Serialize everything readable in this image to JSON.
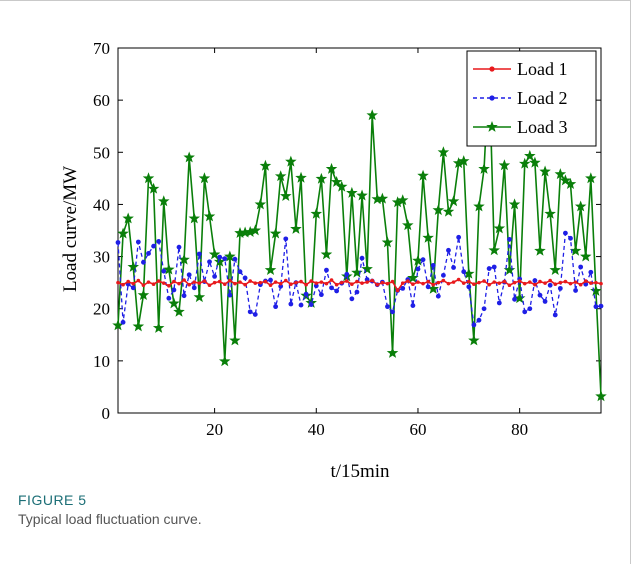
{
  "caption": {
    "label": "FIGURE 5",
    "text": "Typical load fluctuation curve."
  },
  "chart_data": {
    "type": "line",
    "xlabel": "t/15min",
    "ylabel": "Load curve/MW",
    "xlim": [
      1,
      96
    ],
    "ylim": [
      0,
      70
    ],
    "xticks": [
      20,
      40,
      60,
      80
    ],
    "yticks": [
      0,
      10,
      20,
      30,
      40,
      50,
      60,
      70
    ],
    "grid": false,
    "legend_position": "top-right",
    "x": [
      1,
      2,
      3,
      4,
      5,
      6,
      7,
      8,
      9,
      10,
      11,
      12,
      13,
      14,
      15,
      16,
      17,
      18,
      19,
      20,
      21,
      22,
      23,
      24,
      25,
      26,
      27,
      28,
      29,
      30,
      31,
      32,
      33,
      34,
      35,
      36,
      37,
      38,
      39,
      40,
      41,
      42,
      43,
      44,
      45,
      46,
      47,
      48,
      49,
      50,
      51,
      52,
      53,
      54,
      55,
      56,
      57,
      58,
      59,
      60,
      61,
      62,
      63,
      64,
      65,
      66,
      67,
      68,
      69,
      70,
      71,
      72,
      73,
      74,
      75,
      76,
      77,
      78,
      79,
      80,
      81,
      82,
      83,
      84,
      85,
      86,
      87,
      88,
      89,
      90,
      91,
      92,
      93,
      94,
      95,
      96
    ],
    "series": [
      {
        "name": "Load 1",
        "color": "#e8191c",
        "marker": "dot",
        "line_style": "solid",
        "values": [
          25.0,
          24.6,
          25.2,
          24.8,
          25.4,
          24.5,
          25.1,
          24.7,
          25.3,
          24.9,
          24.4,
          25.2,
          24.8,
          25.5,
          24.6,
          25.1,
          24.9,
          25.3,
          24.5,
          25.0,
          25.2,
          24.7,
          25.4,
          24.8,
          25.1,
          24.6,
          25.3,
          24.9,
          25.0,
          25.2,
          24.5,
          25.1,
          24.8,
          25.4,
          24.7,
          25.0,
          25.2,
          24.6,
          25.3,
          24.9,
          25.1,
          24.8,
          25.5,
          24.6,
          25.0,
          25.3,
          24.7,
          25.2,
          24.9,
          25.1,
          25.4,
          24.6,
          25.0,
          24.8,
          25.2,
          23.5,
          24.9,
          25.3,
          24.7,
          25.1,
          24.8,
          25.2,
          24.6,
          25.0,
          25.4,
          24.8,
          25.1,
          25.6,
          24.9,
          25.2,
          24.7,
          25.0,
          25.3,
          24.6,
          25.1,
          24.9,
          25.2,
          24.5,
          25.0,
          25.3,
          24.8,
          25.1,
          24.6,
          25.2,
          24.9,
          25.4,
          24.7,
          25.0,
          25.2,
          24.8,
          25.1,
          24.6,
          25.3,
          24.9,
          25.0,
          24.8
        ]
      },
      {
        "name": "Load 2",
        "color": "#1f1fe6",
        "marker": "dot",
        "line_style": "dashed",
        "values": [
          32.7,
          17.4,
          24.7,
          24.0,
          32.8,
          28.9,
          30.6,
          32.0,
          32.9,
          27.2,
          22.0,
          23.6,
          31.8,
          22.5,
          26.5,
          24.0,
          30.5,
          25.2,
          29.0,
          26.2,
          29.9,
          29.6,
          22.6,
          29.5,
          27.1,
          25.9,
          19.4,
          18.9,
          24.6,
          25.3,
          25.5,
          20.4,
          24.3,
          33.4,
          20.9,
          25.0,
          20.7,
          22.8,
          20.8,
          24.4,
          22.7,
          27.4,
          24.0,
          23.4,
          24.9,
          26.6,
          21.9,
          23.2,
          29.7,
          25.6,
          25.3,
          24.6,
          25.1,
          20.4,
          19.4,
          23.5,
          23.9,
          25.6,
          20.6,
          27.6,
          29.4,
          24.2,
          28.3,
          22.4,
          26.4,
          31.2,
          27.9,
          33.7,
          27.1,
          24.2,
          16.9,
          17.8,
          20.0,
          27.7,
          28.0,
          21.1,
          25.1,
          33.3,
          21.8,
          25.7,
          19.4,
          20.0,
          25.4,
          22.6,
          21.4,
          24.5,
          18.8,
          23.9,
          34.5,
          33.5,
          23.5,
          28.0,
          24.7,
          27.0,
          20.4,
          20.5
        ]
      },
      {
        "name": "Load 3",
        "color": "#0a7f0a",
        "marker": "star",
        "line_style": "solid",
        "values": [
          16.8,
          34.4,
          37.3,
          28.0,
          16.6,
          22.6,
          45.0,
          43.0,
          16.3,
          40.6,
          27.5,
          21.0,
          19.4,
          29.4,
          49.0,
          37.3,
          22.2,
          45.0,
          37.7,
          30.4,
          29.0,
          9.9,
          30.0,
          13.9,
          34.5,
          34.6,
          34.7,
          35.0,
          40.0,
          47.4,
          27.4,
          34.4,
          45.4,
          41.6,
          48.2,
          35.3,
          45.1,
          22.5,
          21.1,
          38.2,
          44.9,
          30.4,
          46.8,
          44.3,
          43.4,
          26.2,
          42.2,
          26.9,
          41.7,
          27.6,
          57.1,
          41.0,
          41.1,
          32.7,
          11.5,
          40.4,
          40.8,
          36.0,
          25.9,
          29.2,
          45.5,
          33.6,
          23.8,
          38.9,
          50.0,
          38.6,
          40.6,
          47.9,
          48.3,
          26.7,
          13.9,
          39.6,
          46.8,
          66.0,
          31.2,
          35.4,
          47.5,
          27.4,
          40.0,
          22.0,
          47.8,
          49.3,
          48.0,
          31.1,
          46.3,
          38.2,
          27.4,
          45.8,
          44.6,
          43.9,
          31.1,
          39.6,
          30.0,
          45.0,
          23.4,
          3.2
        ]
      }
    ]
  }
}
